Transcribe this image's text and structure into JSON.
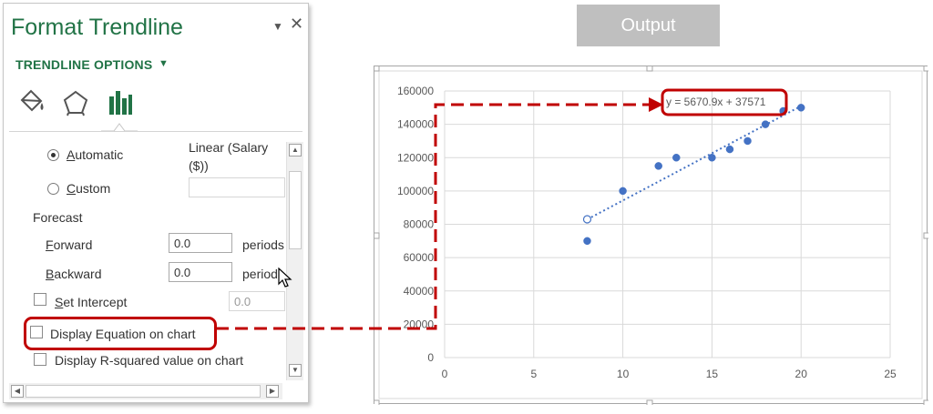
{
  "pane": {
    "title": "Format Trendline",
    "options_header": "TRENDLINE OPTIONS",
    "tabs": [
      {
        "name": "fill-line-tab",
        "icon": "paint-bucket-icon"
      },
      {
        "name": "effects-tab",
        "icon": "pentagon-icon"
      },
      {
        "name": "trendline-options-tab",
        "icon": "bar-chart-icon"
      }
    ],
    "automatic_label": "Automatic",
    "automatic_value_line1": "Linear (Salary",
    "automatic_value_line2": "($))",
    "custom_label": "Custom",
    "custom_value": "",
    "forecast_label": "Forecast",
    "forward_label": "Forward",
    "forward_value": "0.0",
    "forward_unit": "periods",
    "backward_label": "Backward",
    "backward_value": "0.0",
    "backward_unit": "periods",
    "set_intercept_label": "Set Intercept",
    "set_intercept_value": "0.0",
    "display_equation_label": "Display Equation on chart",
    "display_rsquared_label": "Display R-squared value on chart",
    "highlight_color": "#c00000",
    "accent_color": "#217346"
  },
  "output_label": "Output",
  "chart_data": {
    "type": "scatter",
    "x": [
      8,
      8,
      10,
      12,
      13,
      15,
      16,
      17,
      18,
      19,
      20
    ],
    "y": [
      70000,
      83000,
      100000,
      115000,
      120000,
      120000,
      125000,
      130000,
      140000,
      148000,
      150000
    ],
    "xlim": [
      0,
      25
    ],
    "ylim": [
      0,
      160000
    ],
    "x_ticks": [
      "0",
      "5",
      "10",
      "15",
      "20",
      "25"
    ],
    "y_ticks": [
      "0",
      "20000",
      "40000",
      "60000",
      "80000",
      "100000",
      "120000",
      "140000",
      "160000"
    ],
    "grid": true,
    "trendline": {
      "type": "linear",
      "slope": 5670.9,
      "intercept": 37570,
      "x_range": [
        8,
        20
      ],
      "style": "dotted"
    },
    "equation_label": "y = 5670.9x + 37571",
    "point_color": "#4472c4"
  }
}
